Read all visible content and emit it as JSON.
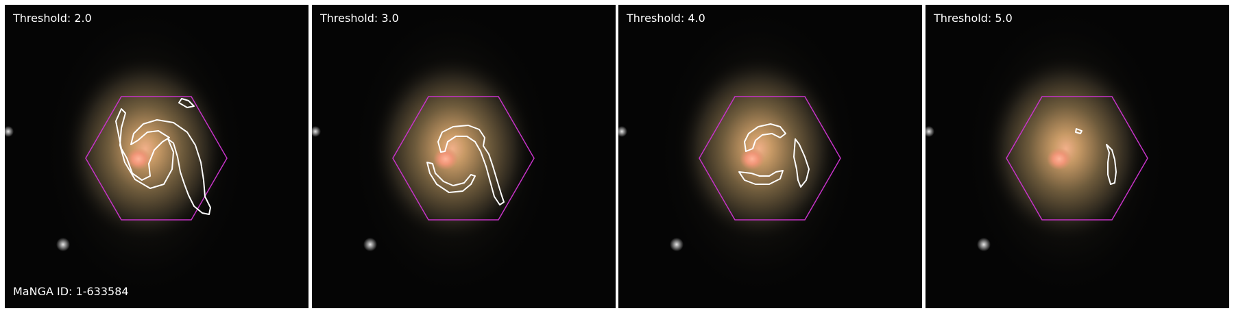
{
  "panels": [
    {
      "threshold_label": "Threshold: 2.0"
    },
    {
      "threshold_label": "Threshold: 3.0"
    },
    {
      "threshold_label": "Threshold: 4.0"
    },
    {
      "threshold_label": "Threshold: 5.0"
    }
  ],
  "galaxy_id_label": "MaNGA ID: 1-633584",
  "colors": {
    "hexagon": "#c633c8",
    "contour": "#ffffff",
    "sky": "#050505",
    "galaxy_core": "#f2a27e",
    "galaxy_disk": "#a88a55"
  }
}
